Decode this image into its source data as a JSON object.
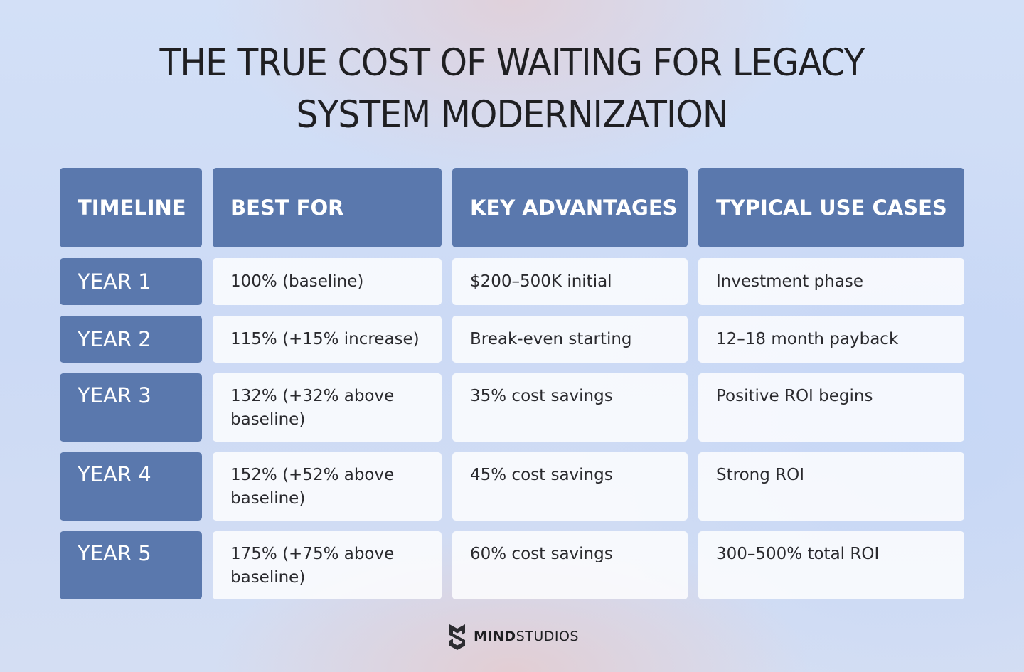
{
  "title": {
    "line1": "THE TRUE COST OF WAITING FOR LEGACY",
    "line2": "SYSTEM MODERNIZATION"
  },
  "table": {
    "headers": [
      "TIMELINE",
      "BEST FOR",
      "KEY ADVANTAGES",
      "TYPICAL USE CASES"
    ],
    "rows": [
      {
        "timeline": "YEAR 1",
        "best_for": "100% (baseline)",
        "key_advantages": "$200–500K initial",
        "use_cases": "Investment phase"
      },
      {
        "timeline": "YEAR 2",
        "best_for": "115% (+15% increase)",
        "key_advantages": "Break-even starting",
        "use_cases": "12–18 month payback"
      },
      {
        "timeline": "YEAR 3",
        "best_for": "132% (+32% above baseline)",
        "key_advantages": "35% cost savings",
        "use_cases": "Positive ROI begins"
      },
      {
        "timeline": "YEAR 4",
        "best_for": "152% (+52% above baseline)",
        "key_advantages": "45% cost savings",
        "use_cases": "Strong ROI"
      },
      {
        "timeline": "YEAR 5",
        "best_for": "175% (+75% above baseline)",
        "key_advantages": "60% cost savings",
        "use_cases": "300–500% total ROI"
      }
    ]
  },
  "logo": {
    "icon": "mindstudios-logo-icon",
    "text_bold": "MIND",
    "text_regular": "STUDIOS"
  },
  "colors": {
    "header_bg": "#5a78ad",
    "cell_bg": "#f5f7fc",
    "title_text": "#1f1f22"
  }
}
